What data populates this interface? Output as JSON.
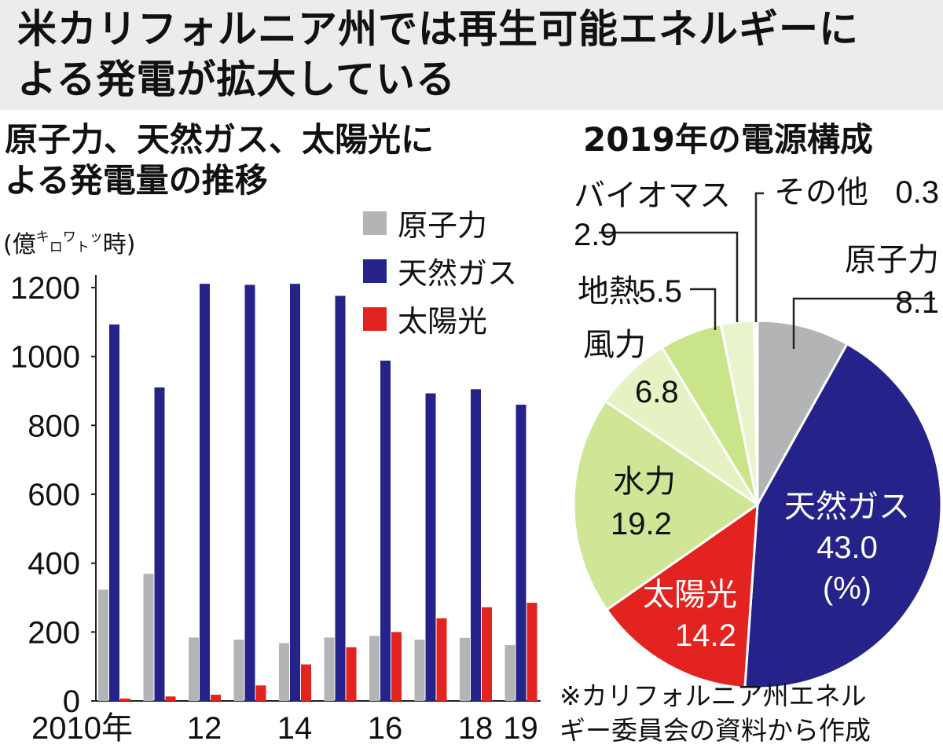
{
  "header": {
    "line1": "米カリフォルニア州では再生可能エネルギーに",
    "line2": "よる発電が拡大している"
  },
  "bar_section": {
    "title_line1": "原子力、天然ガス、太陽光に",
    "title_line2": "よる発電量の推移",
    "unit_main": "億",
    "unit_ki": "キ",
    "unit_ro": "ロ",
    "unit_wa": "ワ",
    "unit_to": "ト",
    "unit_xtsu": "ッ",
    "unit_ji": "時"
  },
  "pie_section": {
    "title": "2019年の電源構成"
  },
  "footnote": {
    "line1": "※カリフォルニア州エネル",
    "line2": "ギー委員会の資料から作成"
  },
  "colors": {
    "nuclear": "#b3b4b6",
    "gas": "#25238a",
    "solar": "#e3231f",
    "hydro": "#cfe696",
    "wind": "#e6f2c4",
    "geothermal": "#c9e489",
    "biomass": "#e9f4cc",
    "other": "#ffffff"
  },
  "chart_data": [
    {
      "type": "bar",
      "title": "原子力、天然ガス、太陽光による発電量の推移",
      "ylabel": "億キロワット時",
      "ylim": [
        0,
        1200
      ],
      "yticks": [
        0,
        200,
        400,
        600,
        800,
        1000,
        1200
      ],
      "categories": [
        "2010",
        "2011",
        "2012",
        "2013",
        "2014",
        "2015",
        "2016",
        "2017",
        "2018",
        "2019"
      ],
      "category_labels": [
        "2010年",
        "",
        "12",
        "",
        "14",
        "",
        "16",
        "",
        "18",
        "19"
      ],
      "legend_position": "top-right",
      "series": [
        {
          "name": "原子力",
          "color_key": "nuclear",
          "values": [
            323,
            369,
            184,
            178,
            168,
            184,
            189,
            178,
            183,
            162
          ]
        },
        {
          "name": "天然ガス",
          "color_key": "gas",
          "values": [
            1093,
            910,
            1211,
            1208,
            1211,
            1176,
            988,
            893,
            905,
            860
          ]
        },
        {
          "name": "太陽光",
          "color_key": "solar",
          "values": [
            7,
            13,
            18,
            45,
            106,
            156,
            200,
            240,
            272,
            285
          ]
        }
      ]
    },
    {
      "type": "pie",
      "title": "2019年の電源構成",
      "unit": "(%)",
      "slices": [
        {
          "name": "原子力",
          "value": 8.1,
          "color_key": "nuclear"
        },
        {
          "name": "天然ガス",
          "value": 43.0,
          "color_key": "gas"
        },
        {
          "name": "太陽光",
          "value": 14.2,
          "color_key": "solar"
        },
        {
          "name": "水力",
          "value": 19.2,
          "color_key": "hydro"
        },
        {
          "name": "風力",
          "value": 6.8,
          "color_key": "wind"
        },
        {
          "name": "地熱",
          "value": 5.5,
          "color_key": "geothermal"
        },
        {
          "name": "バイオマス",
          "value": 2.9,
          "color_key": "biomass"
        },
        {
          "name": "その他",
          "value": 0.3,
          "color_key": "other"
        }
      ]
    }
  ]
}
